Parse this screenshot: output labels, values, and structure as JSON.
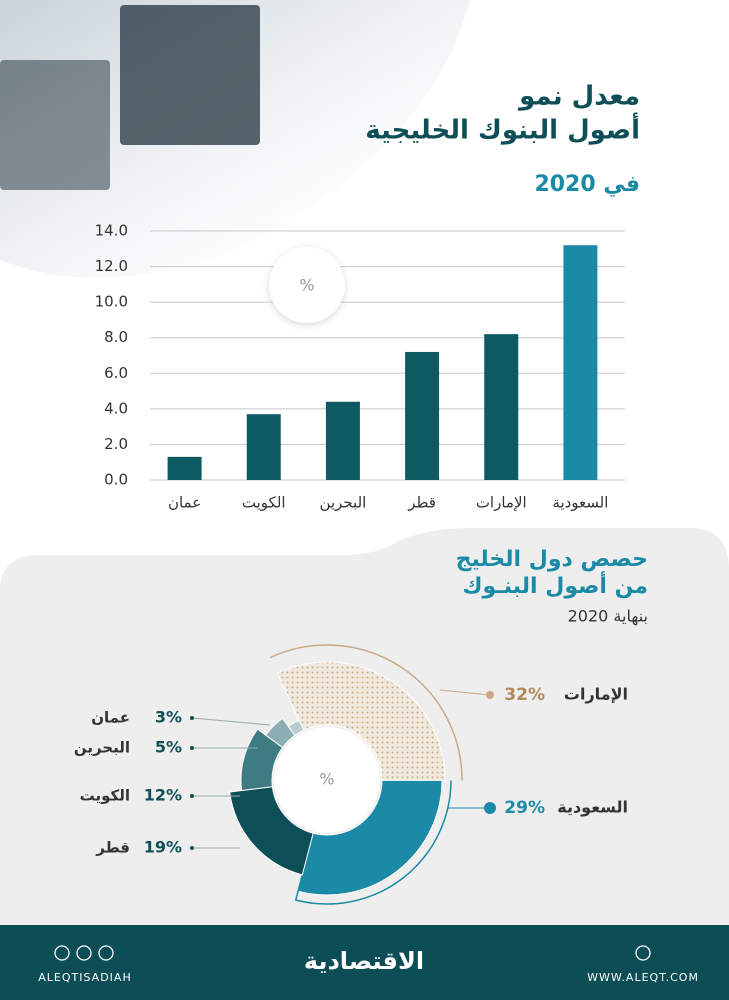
{
  "chart_data": [
    {
      "type": "bar",
      "title": [
        "معدل نمو",
        "أصول البنوك الخليجية"
      ],
      "subtitle": "في 2020",
      "unit": "%",
      "categories": [
        "عمان",
        "الكويت",
        "البحرين",
        "قطر",
        "الإمارات",
        "السعودية"
      ],
      "values": [
        1.3,
        3.7,
        4.4,
        7.2,
        8.2,
        13.2
      ],
      "colors": [
        "#0e5a63",
        "#0e5a63",
        "#0e5a63",
        "#0e5a63",
        "#0e5a63",
        "#1a8aa6"
      ],
      "ylim": [
        0,
        14
      ],
      "yticks": [
        {
          "value": 0,
          "label": "0.0"
        },
        {
          "value": 2,
          "label": "2.0"
        },
        {
          "value": 4,
          "label": "4.0"
        },
        {
          "value": 6,
          "label": "6.0"
        },
        {
          "value": 8,
          "label": "8.0"
        },
        {
          "value": 10,
          "label": "10.0"
        },
        {
          "value": 12,
          "label": "12.0"
        },
        {
          "value": 14,
          "label": "14.0"
        }
      ],
      "grid": true
    },
    {
      "type": "pie",
      "title": [
        "حصص دول الخليج",
        "من أصول البنـوك"
      ],
      "subtitle": "بنهاية 2020",
      "unit": "%",
      "categories": [
        "الإمارات",
        "السعودية",
        "قطر",
        "الكويت",
        "البحرين",
        "عمان"
      ],
      "values": [
        32,
        29,
        19,
        12,
        5,
        3
      ],
      "value_labels": [
        "32%",
        "29%",
        "19%",
        "12%",
        "5%",
        "3%"
      ],
      "colors": [
        "#e9dccb",
        "#1a8aa6",
        "#0e4f57",
        "#3f7c82",
        "#8aaeb3",
        "#b8cdd0"
      ]
    }
  ],
  "footer": {
    "handle": "ALEQTISADIAH",
    "logo": "الاقتصادية",
    "website": "WWW.ALEQT.COM"
  }
}
